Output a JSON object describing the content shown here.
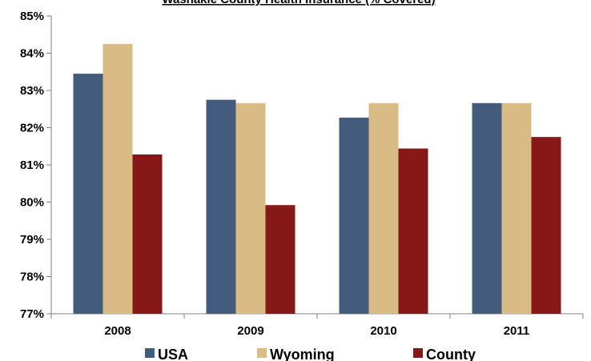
{
  "chart_data": {
    "type": "bar",
    "title": "Washakie County Health Insurance (% Covered)",
    "categories": [
      "2008",
      "2009",
      "2010",
      "2011"
    ],
    "series": [
      {
        "name": "USA",
        "values": [
          83.45,
          82.75,
          82.27,
          82.66
        ]
      },
      {
        "name": "Wyoming",
        "values": [
          84.25,
          82.66,
          82.66,
          82.66
        ]
      },
      {
        "name": "County",
        "values": [
          81.28,
          79.92,
          81.44,
          81.75
        ]
      }
    ],
    "ylim": [
      77,
      85
    ],
    "yticks": [
      "77%",
      "78%",
      "79%",
      "80%",
      "81%",
      "82%",
      "83%",
      "84%",
      "85%"
    ],
    "xlabel": "",
    "ylabel": "",
    "grid": false,
    "legend": "bottom",
    "colors": [
      "#435c7d",
      "#d9bc84",
      "#861818"
    ]
  }
}
